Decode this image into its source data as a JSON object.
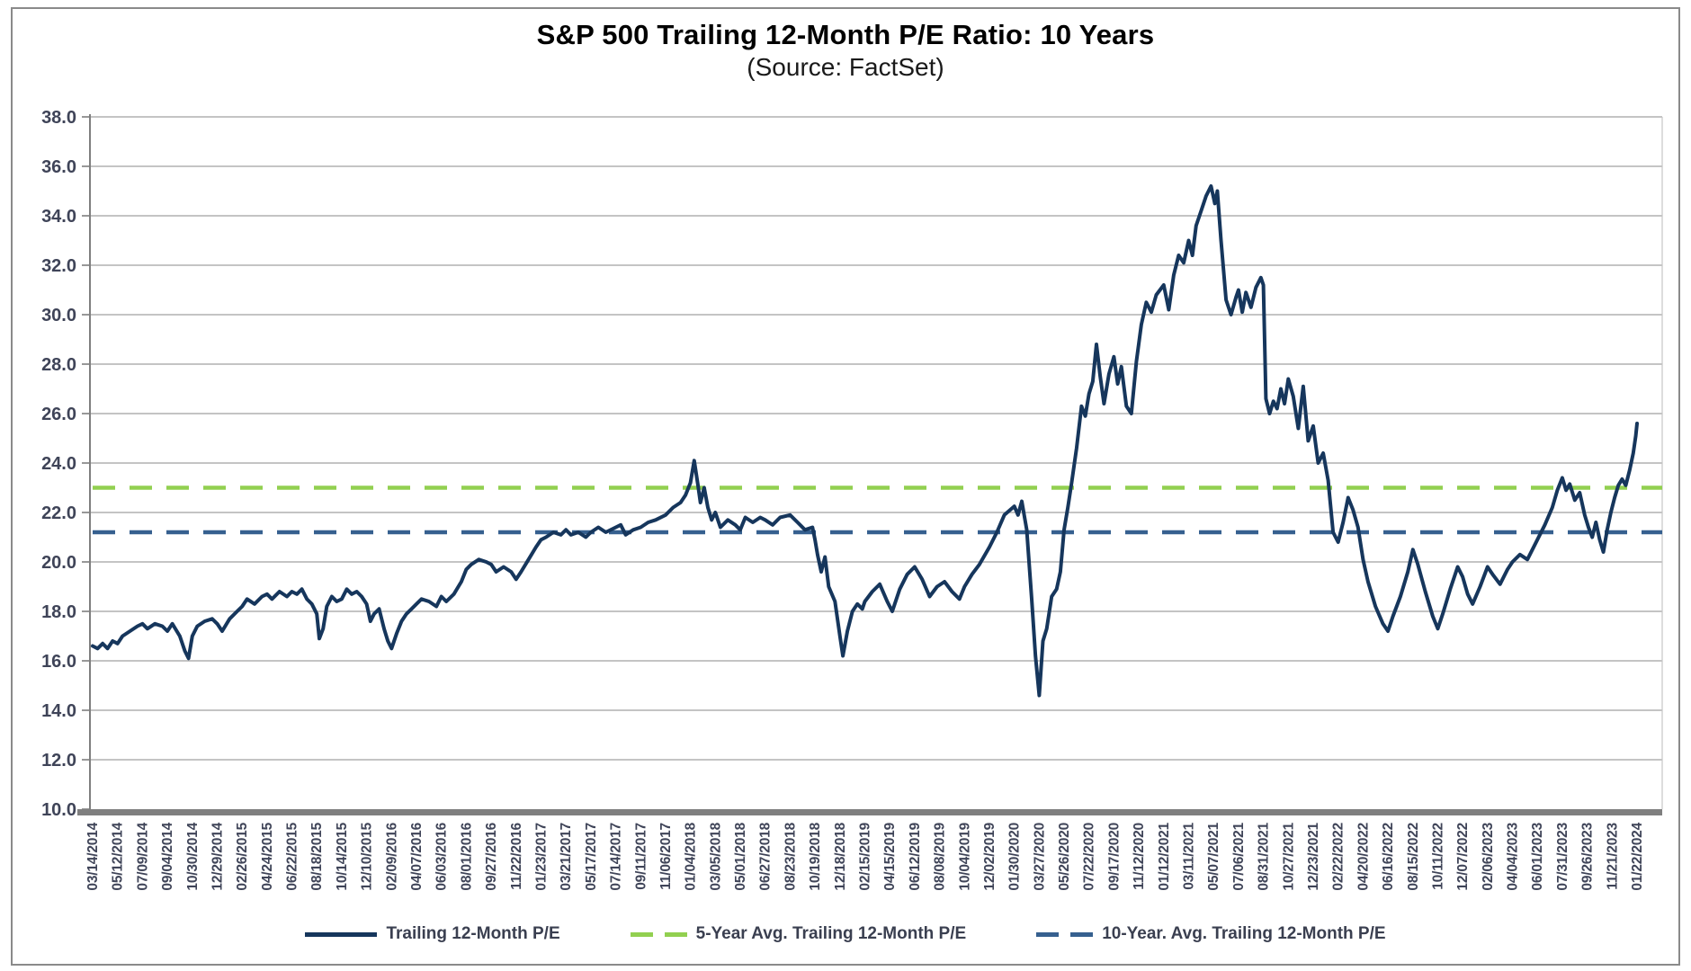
{
  "header": {
    "title": "S&P 500 Trailing 12-Month P/E Ratio: 10 Years",
    "subtitle": "(Source: FactSet)"
  },
  "chart_data": {
    "type": "line",
    "title": "S&P 500 Trailing 12-Month P/E Ratio: 10 Years",
    "subtitle": "(Source: FactSet)",
    "grid": true,
    "legend_position": "bottom",
    "colors": {
      "line": "#16365c",
      "avg5": "#92d050",
      "avg10": "#36608f",
      "grid": "#b0b0b0",
      "axis": "#7f7f7f",
      "label": "#3f4458",
      "plot_right_border": "#c6c6c6"
    },
    "y_axis": {
      "min": 10.0,
      "max": 38.0,
      "step": 2.0,
      "tick_labels": [
        "10.0",
        "12.0",
        "14.0",
        "16.0",
        "18.0",
        "20.0",
        "22.0",
        "24.0",
        "26.0",
        "28.0",
        "30.0",
        "32.0",
        "34.0",
        "36.0",
        "38.0"
      ]
    },
    "x_tick_labels": [
      "03/14/2014",
      "05/12/2014",
      "07/09/2014",
      "09/04/2014",
      "10/30/2014",
      "12/29/2014",
      "02/26/2015",
      "04/24/2015",
      "06/22/2015",
      "08/18/2015",
      "10/14/2015",
      "12/10/2015",
      "02/09/2016",
      "04/07/2016",
      "06/03/2016",
      "08/01/2016",
      "09/27/2016",
      "11/22/2016",
      "01/23/2017",
      "03/21/2017",
      "05/17/2017",
      "07/14/2017",
      "09/11/2017",
      "11/06/2017",
      "01/04/2018",
      "03/05/2018",
      "05/01/2018",
      "06/27/2018",
      "08/23/2018",
      "10/19/2018",
      "12/18/2018",
      "02/15/2019",
      "04/15/2019",
      "06/12/2019",
      "08/08/2019",
      "10/04/2019",
      "12/02/2019",
      "01/30/2020",
      "03/27/2020",
      "05/26/2020",
      "07/22/2020",
      "09/17/2020",
      "11/12/2020",
      "01/12/2021",
      "03/11/2021",
      "05/07/2021",
      "07/06/2021",
      "08/31/2021",
      "10/27/2021",
      "12/23/2021",
      "02/22/2022",
      "04/20/2022",
      "06/16/2022",
      "08/15/2022",
      "10/11/2022",
      "12/07/2022",
      "02/06/2023",
      "04/04/2023",
      "06/01/2023",
      "07/31/2023",
      "09/26/2023",
      "11/21/2023",
      "01/22/2024"
    ],
    "series": [
      {
        "name": "Trailing 12-Month P/E",
        "style": "solid",
        "color": "#16365c",
        "points": [
          [
            0,
            16.6
          ],
          [
            0.2,
            16.5
          ],
          [
            0.4,
            16.7
          ],
          [
            0.6,
            16.5
          ],
          [
            0.8,
            16.8
          ],
          [
            1,
            16.7
          ],
          [
            1.2,
            17.0
          ],
          [
            1.5,
            17.2
          ],
          [
            1.8,
            17.4
          ],
          [
            2,
            17.5
          ],
          [
            2.2,
            17.3
          ],
          [
            2.5,
            17.5
          ],
          [
            2.8,
            17.4
          ],
          [
            3,
            17.2
          ],
          [
            3.2,
            17.5
          ],
          [
            3.5,
            17.0
          ],
          [
            3.7,
            16.4
          ],
          [
            3.85,
            16.1
          ],
          [
            4,
            17.0
          ],
          [
            4.2,
            17.4
          ],
          [
            4.5,
            17.6
          ],
          [
            4.8,
            17.7
          ],
          [
            5,
            17.5
          ],
          [
            5.2,
            17.2
          ],
          [
            5.5,
            17.7
          ],
          [
            5.8,
            18.0
          ],
          [
            6,
            18.2
          ],
          [
            6.2,
            18.5
          ],
          [
            6.5,
            18.3
          ],
          [
            6.8,
            18.6
          ],
          [
            7,
            18.7
          ],
          [
            7.2,
            18.5
          ],
          [
            7.5,
            18.8
          ],
          [
            7.8,
            18.6
          ],
          [
            8,
            18.8
          ],
          [
            8.2,
            18.7
          ],
          [
            8.4,
            18.9
          ],
          [
            8.6,
            18.5
          ],
          [
            8.8,
            18.3
          ],
          [
            9,
            17.9
          ],
          [
            9.1,
            16.9
          ],
          [
            9.25,
            17.3
          ],
          [
            9.4,
            18.2
          ],
          [
            9.6,
            18.6
          ],
          [
            9.8,
            18.4
          ],
          [
            10,
            18.5
          ],
          [
            10.2,
            18.9
          ],
          [
            10.4,
            18.7
          ],
          [
            10.6,
            18.8
          ],
          [
            10.8,
            18.6
          ],
          [
            11,
            18.3
          ],
          [
            11.15,
            17.6
          ],
          [
            11.3,
            17.9
          ],
          [
            11.5,
            18.1
          ],
          [
            11.7,
            17.3
          ],
          [
            11.85,
            16.8
          ],
          [
            12,
            16.5
          ],
          [
            12.2,
            17.1
          ],
          [
            12.4,
            17.6
          ],
          [
            12.6,
            17.9
          ],
          [
            12.8,
            18.1
          ],
          [
            13,
            18.3
          ],
          [
            13.2,
            18.5
          ],
          [
            13.5,
            18.4
          ],
          [
            13.8,
            18.2
          ],
          [
            14,
            18.6
          ],
          [
            14.2,
            18.4
          ],
          [
            14.5,
            18.7
          ],
          [
            14.8,
            19.2
          ],
          [
            15,
            19.7
          ],
          [
            15.2,
            19.9
          ],
          [
            15.5,
            20.1
          ],
          [
            15.8,
            20.0
          ],
          [
            16,
            19.9
          ],
          [
            16.2,
            19.6
          ],
          [
            16.5,
            19.8
          ],
          [
            16.8,
            19.6
          ],
          [
            17,
            19.3
          ],
          [
            17.2,
            19.6
          ],
          [
            17.5,
            20.1
          ],
          [
            17.8,
            20.6
          ],
          [
            18,
            20.9
          ],
          [
            18.2,
            21.0
          ],
          [
            18.5,
            21.2
          ],
          [
            18.8,
            21.1
          ],
          [
            19,
            21.3
          ],
          [
            19.2,
            21.1
          ],
          [
            19.5,
            21.2
          ],
          [
            19.8,
            21.0
          ],
          [
            20,
            21.2
          ],
          [
            20.3,
            21.4
          ],
          [
            20.6,
            21.2
          ],
          [
            21,
            21.4
          ],
          [
            21.2,
            21.5
          ],
          [
            21.4,
            21.1
          ],
          [
            21.7,
            21.3
          ],
          [
            22,
            21.4
          ],
          [
            22.3,
            21.6
          ],
          [
            22.6,
            21.7
          ],
          [
            23,
            21.9
          ],
          [
            23.3,
            22.2
          ],
          [
            23.6,
            22.4
          ],
          [
            23.8,
            22.7
          ],
          [
            24,
            23.2
          ],
          [
            24.15,
            24.1
          ],
          [
            24.3,
            23.1
          ],
          [
            24.4,
            22.4
          ],
          [
            24.55,
            23.0
          ],
          [
            24.7,
            22.2
          ],
          [
            24.85,
            21.7
          ],
          [
            25,
            22.0
          ],
          [
            25.2,
            21.4
          ],
          [
            25.5,
            21.7
          ],
          [
            25.8,
            21.5
          ],
          [
            26,
            21.3
          ],
          [
            26.2,
            21.8
          ],
          [
            26.5,
            21.6
          ],
          [
            26.8,
            21.8
          ],
          [
            27,
            21.7
          ],
          [
            27.3,
            21.5
          ],
          [
            27.6,
            21.8
          ],
          [
            28,
            21.9
          ],
          [
            28.3,
            21.6
          ],
          [
            28.6,
            21.3
          ],
          [
            28.9,
            21.4
          ],
          [
            29,
            20.9
          ],
          [
            29.1,
            20.3
          ],
          [
            29.25,
            19.6
          ],
          [
            29.4,
            20.2
          ],
          [
            29.55,
            19.0
          ],
          [
            29.8,
            18.4
          ],
          [
            30,
            17.0
          ],
          [
            30.12,
            16.2
          ],
          [
            30.3,
            17.2
          ],
          [
            30.5,
            18.0
          ],
          [
            30.7,
            18.3
          ],
          [
            30.9,
            18.1
          ],
          [
            31,
            18.4
          ],
          [
            31.3,
            18.8
          ],
          [
            31.6,
            19.1
          ],
          [
            31.9,
            18.4
          ],
          [
            32.1,
            18.0
          ],
          [
            32.4,
            18.9
          ],
          [
            32.7,
            19.5
          ],
          [
            33,
            19.8
          ],
          [
            33.3,
            19.3
          ],
          [
            33.6,
            18.6
          ],
          [
            33.9,
            19.0
          ],
          [
            34.2,
            19.2
          ],
          [
            34.5,
            18.8
          ],
          [
            34.8,
            18.5
          ],
          [
            35,
            19.0
          ],
          [
            35.3,
            19.5
          ],
          [
            35.6,
            19.9
          ],
          [
            36,
            20.6
          ],
          [
            36.3,
            21.2
          ],
          [
            36.6,
            21.9
          ],
          [
            37,
            22.25
          ],
          [
            37.15,
            21.9
          ],
          [
            37.3,
            22.45
          ],
          [
            37.5,
            21.3
          ],
          [
            37.7,
            18.5
          ],
          [
            37.85,
            16.2
          ],
          [
            38,
            14.6
          ],
          [
            38.15,
            16.8
          ],
          [
            38.3,
            17.3
          ],
          [
            38.5,
            18.6
          ],
          [
            38.7,
            18.9
          ],
          [
            38.85,
            19.6
          ],
          [
            39,
            21.3
          ],
          [
            39.15,
            22.2
          ],
          [
            39.3,
            23.2
          ],
          [
            39.5,
            24.6
          ],
          [
            39.7,
            26.3
          ],
          [
            39.85,
            25.9
          ],
          [
            40,
            26.8
          ],
          [
            40.15,
            27.3
          ],
          [
            40.3,
            28.8
          ],
          [
            40.45,
            27.5
          ],
          [
            40.6,
            26.4
          ],
          [
            40.8,
            27.6
          ],
          [
            41,
            28.3
          ],
          [
            41.15,
            27.2
          ],
          [
            41.3,
            27.9
          ],
          [
            41.5,
            26.3
          ],
          [
            41.7,
            26.0
          ],
          [
            41.9,
            28.1
          ],
          [
            42.1,
            29.6
          ],
          [
            42.3,
            30.5
          ],
          [
            42.5,
            30.1
          ],
          [
            42.7,
            30.8
          ],
          [
            43,
            31.2
          ],
          [
            43.2,
            30.2
          ],
          [
            43.4,
            31.6
          ],
          [
            43.6,
            32.4
          ],
          [
            43.8,
            32.1
          ],
          [
            44,
            33.0
          ],
          [
            44.15,
            32.4
          ],
          [
            44.3,
            33.6
          ],
          [
            44.5,
            34.2
          ],
          [
            44.7,
            34.8
          ],
          [
            44.9,
            35.2
          ],
          [
            45.05,
            34.5
          ],
          [
            45.15,
            35.0
          ],
          [
            45.3,
            33.0
          ],
          [
            45.5,
            30.6
          ],
          [
            45.7,
            30.0
          ],
          [
            45.9,
            30.7
          ],
          [
            46,
            31.0
          ],
          [
            46.15,
            30.1
          ],
          [
            46.3,
            30.9
          ],
          [
            46.5,
            30.3
          ],
          [
            46.7,
            31.1
          ],
          [
            46.9,
            31.5
          ],
          [
            47,
            31.2
          ],
          [
            47.1,
            26.6
          ],
          [
            47.25,
            26.0
          ],
          [
            47.4,
            26.5
          ],
          [
            47.55,
            26.2
          ],
          [
            47.7,
            27.0
          ],
          [
            47.85,
            26.4
          ],
          [
            48,
            27.4
          ],
          [
            48.2,
            26.7
          ],
          [
            48.4,
            25.4
          ],
          [
            48.6,
            27.1
          ],
          [
            48.8,
            24.9
          ],
          [
            49,
            25.5
          ],
          [
            49.2,
            24.0
          ],
          [
            49.4,
            24.4
          ],
          [
            49.6,
            23.3
          ],
          [
            49.8,
            21.2
          ],
          [
            50,
            20.8
          ],
          [
            50.2,
            21.6
          ],
          [
            50.4,
            22.6
          ],
          [
            50.6,
            22.1
          ],
          [
            50.8,
            21.4
          ],
          [
            51,
            20.1
          ],
          [
            51.2,
            19.2
          ],
          [
            51.5,
            18.2
          ],
          [
            51.8,
            17.5
          ],
          [
            52,
            17.2
          ],
          [
            52.2,
            17.8
          ],
          [
            52.5,
            18.6
          ],
          [
            52.8,
            19.6
          ],
          [
            53,
            20.5
          ],
          [
            53.2,
            19.9
          ],
          [
            53.5,
            18.8
          ],
          [
            53.8,
            17.8
          ],
          [
            54,
            17.3
          ],
          [
            54.2,
            17.9
          ],
          [
            54.5,
            18.9
          ],
          [
            54.8,
            19.8
          ],
          [
            55,
            19.4
          ],
          [
            55.2,
            18.7
          ],
          [
            55.4,
            18.3
          ],
          [
            55.7,
            19.0
          ],
          [
            56,
            19.8
          ],
          [
            56.2,
            19.5
          ],
          [
            56.5,
            19.1
          ],
          [
            56.8,
            19.7
          ],
          [
            57,
            20.0
          ],
          [
            57.3,
            20.3
          ],
          [
            57.6,
            20.1
          ],
          [
            58,
            20.9
          ],
          [
            58.3,
            21.5
          ],
          [
            58.6,
            22.2
          ],
          [
            58.8,
            22.9
          ],
          [
            59,
            23.4
          ],
          [
            59.15,
            22.9
          ],
          [
            59.3,
            23.15
          ],
          [
            59.5,
            22.5
          ],
          [
            59.7,
            22.8
          ],
          [
            59.9,
            21.9
          ],
          [
            60.05,
            21.4
          ],
          [
            60.2,
            21.0
          ],
          [
            60.35,
            21.6
          ],
          [
            60.5,
            20.9
          ],
          [
            60.65,
            20.4
          ],
          [
            60.8,
            21.3
          ],
          [
            60.95,
            22.0
          ],
          [
            61.1,
            22.6
          ],
          [
            61.25,
            23.1
          ],
          [
            61.4,
            23.35
          ],
          [
            61.55,
            23.1
          ],
          [
            61.7,
            23.7
          ],
          [
            61.85,
            24.4
          ],
          [
            61.95,
            25.1
          ],
          [
            62,
            25.6
          ]
        ]
      },
      {
        "name": "5-Year Avg. Trailing 12-Month P/E",
        "style": "dashed",
        "color": "#92d050",
        "value": 23.0
      },
      {
        "name": "10-Year. Avg. Trailing 12-Month P/E",
        "style": "dashed",
        "color": "#36608f",
        "value": 21.2
      }
    ]
  }
}
